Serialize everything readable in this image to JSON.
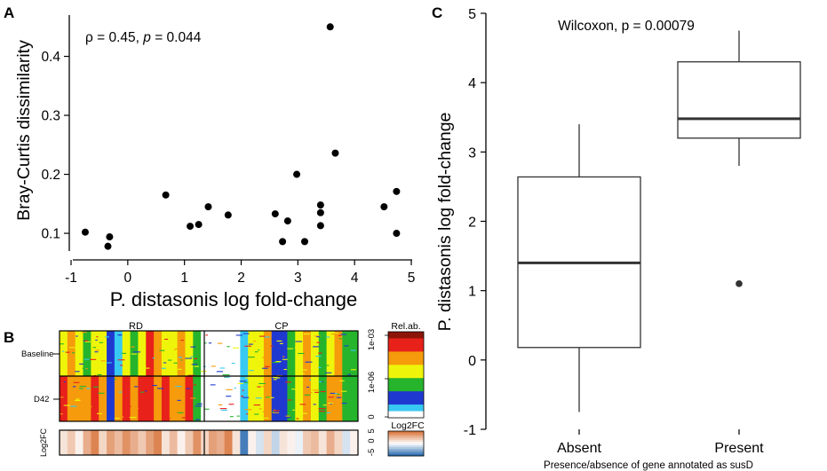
{
  "figure": {
    "panels": {
      "a": "A",
      "b": "B",
      "c": "C"
    },
    "heatmap_b": {
      "group_labels": [
        "RD",
        "CP"
      ],
      "row_labels": [
        "Baseline",
        "D42"
      ],
      "lower_label": "Log2FC",
      "legend_title_rel": "Rel.ab.",
      "legend_ticks_rel": [
        "1e-03",
        "1e-06",
        "0"
      ],
      "legend_title_fc": "Log2FC",
      "legend_ticks_fc": [
        "-5",
        "0",
        "5"
      ],
      "colors": {
        "red": "#e8211b",
        "orange": "#f59b0c",
        "yellow": "#eff50a",
        "green": "#26b42c",
        "blue": "#1f39d0",
        "cyan": "#38c9f2",
        "darkred": "#8b1508",
        "fc_pos": "#d9773f",
        "fc_neg": "#2f6fb2"
      }
    }
  },
  "chart_data": [
    {
      "type": "scatter",
      "panel": "A",
      "xlabel": "P. distasonis log fold-change",
      "ylabel": "Bray-Curtis dissimilarity",
      "annotation": {
        "rho_prefix": "ρ = 0.45, ",
        "p_symbol": "p",
        "p_value": " = 0.044"
      },
      "xlim": [
        -1,
        5
      ],
      "ylim": [
        0.07,
        0.47
      ],
      "xticks": [
        -1,
        0,
        1,
        2,
        3,
        4,
        5
      ],
      "yticks": [
        0.1,
        0.2,
        0.3,
        0.4
      ],
      "xtick_labels": [
        "-1",
        "0",
        "1",
        "2",
        "3",
        "4",
        "5"
      ],
      "ytick_labels": [
        "0.1",
        "0.2",
        "0.3",
        "0.4"
      ],
      "points": [
        {
          "x": -0.75,
          "y": 0.102
        },
        {
          "x": -0.35,
          "y": 0.078
        },
        {
          "x": -0.32,
          "y": 0.094
        },
        {
          "x": 0.67,
          "y": 0.165
        },
        {
          "x": 1.1,
          "y": 0.112
        },
        {
          "x": 1.25,
          "y": 0.115
        },
        {
          "x": 1.42,
          "y": 0.145
        },
        {
          "x": 1.77,
          "y": 0.131
        },
        {
          "x": 2.6,
          "y": 0.133
        },
        {
          "x": 2.73,
          "y": 0.086
        },
        {
          "x": 2.82,
          "y": 0.121
        },
        {
          "x": 2.98,
          "y": 0.2
        },
        {
          "x": 3.12,
          "y": 0.086
        },
        {
          "x": 3.4,
          "y": 0.148
        },
        {
          "x": 3.4,
          "y": 0.135
        },
        {
          "x": 3.4,
          "y": 0.113
        },
        {
          "x": 3.57,
          "y": 0.45
        },
        {
          "x": 3.66,
          "y": 0.236
        },
        {
          "x": 4.52,
          "y": 0.145
        },
        {
          "x": 4.74,
          "y": 0.171
        },
        {
          "x": 4.74,
          "y": 0.1
        }
      ],
      "grid": false
    },
    {
      "type": "box",
      "panel": "C",
      "title": "Wilcoxon, p = 0.00079",
      "xlabel": "Presence/absence of gene annotated as susD",
      "ylabel": "P. distasonis log fold-change",
      "categories": [
        "Absent",
        "Present"
      ],
      "ylim": [
        -1,
        5
      ],
      "yticks": [
        -1,
        0,
        1,
        2,
        3,
        4,
        5
      ],
      "ytick_labels": [
        "-1",
        "0",
        "1",
        "2",
        "3",
        "4",
        "5"
      ],
      "boxes": [
        {
          "whisker_low": -0.75,
          "q1": 0.18,
          "median": 1.4,
          "q3": 2.64,
          "whisker_high": 3.4,
          "outliers": []
        },
        {
          "whisker_low": 2.8,
          "q1": 3.2,
          "median": 3.48,
          "q3": 4.3,
          "whisker_high": 4.75,
          "outliers": [
            1.1
          ]
        }
      ],
      "grid": false
    }
  ]
}
